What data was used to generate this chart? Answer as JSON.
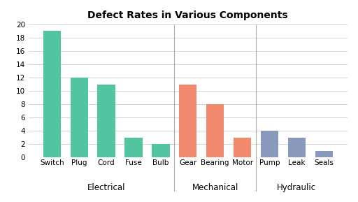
{
  "title": "Defect Rates in Various Components",
  "categories": [
    "Switch",
    "Plug",
    "Cord",
    "Fuse",
    "Bulb",
    "Gear",
    "Bearing",
    "Motor",
    "Pump",
    "Leak",
    "Seals"
  ],
  "values": [
    19,
    12,
    11,
    3,
    2,
    11,
    8,
    3,
    4,
    3,
    1
  ],
  "bar_colors": [
    "#52c4a0",
    "#52c4a0",
    "#52c4a0",
    "#52c4a0",
    "#52c4a0",
    "#f28b6e",
    "#f28b6e",
    "#f28b6e",
    "#8899bb",
    "#8899bb",
    "#8899bb"
  ],
  "groups": [
    {
      "label": "Electrical",
      "start": 0,
      "end": 4
    },
    {
      "label": "Mechanical",
      "start": 5,
      "end": 7
    },
    {
      "label": "Hydraulic",
      "start": 8,
      "end": 10
    }
  ],
  "separators": [
    4.5,
    7.5
  ],
  "ylim": [
    0,
    20
  ],
  "yticks": [
    0,
    2,
    4,
    6,
    8,
    10,
    12,
    14,
    16,
    18,
    20
  ],
  "background_color": "#ffffff",
  "title_fontsize": 10,
  "tick_fontsize": 7.5,
  "group_label_fontsize": 8.5
}
